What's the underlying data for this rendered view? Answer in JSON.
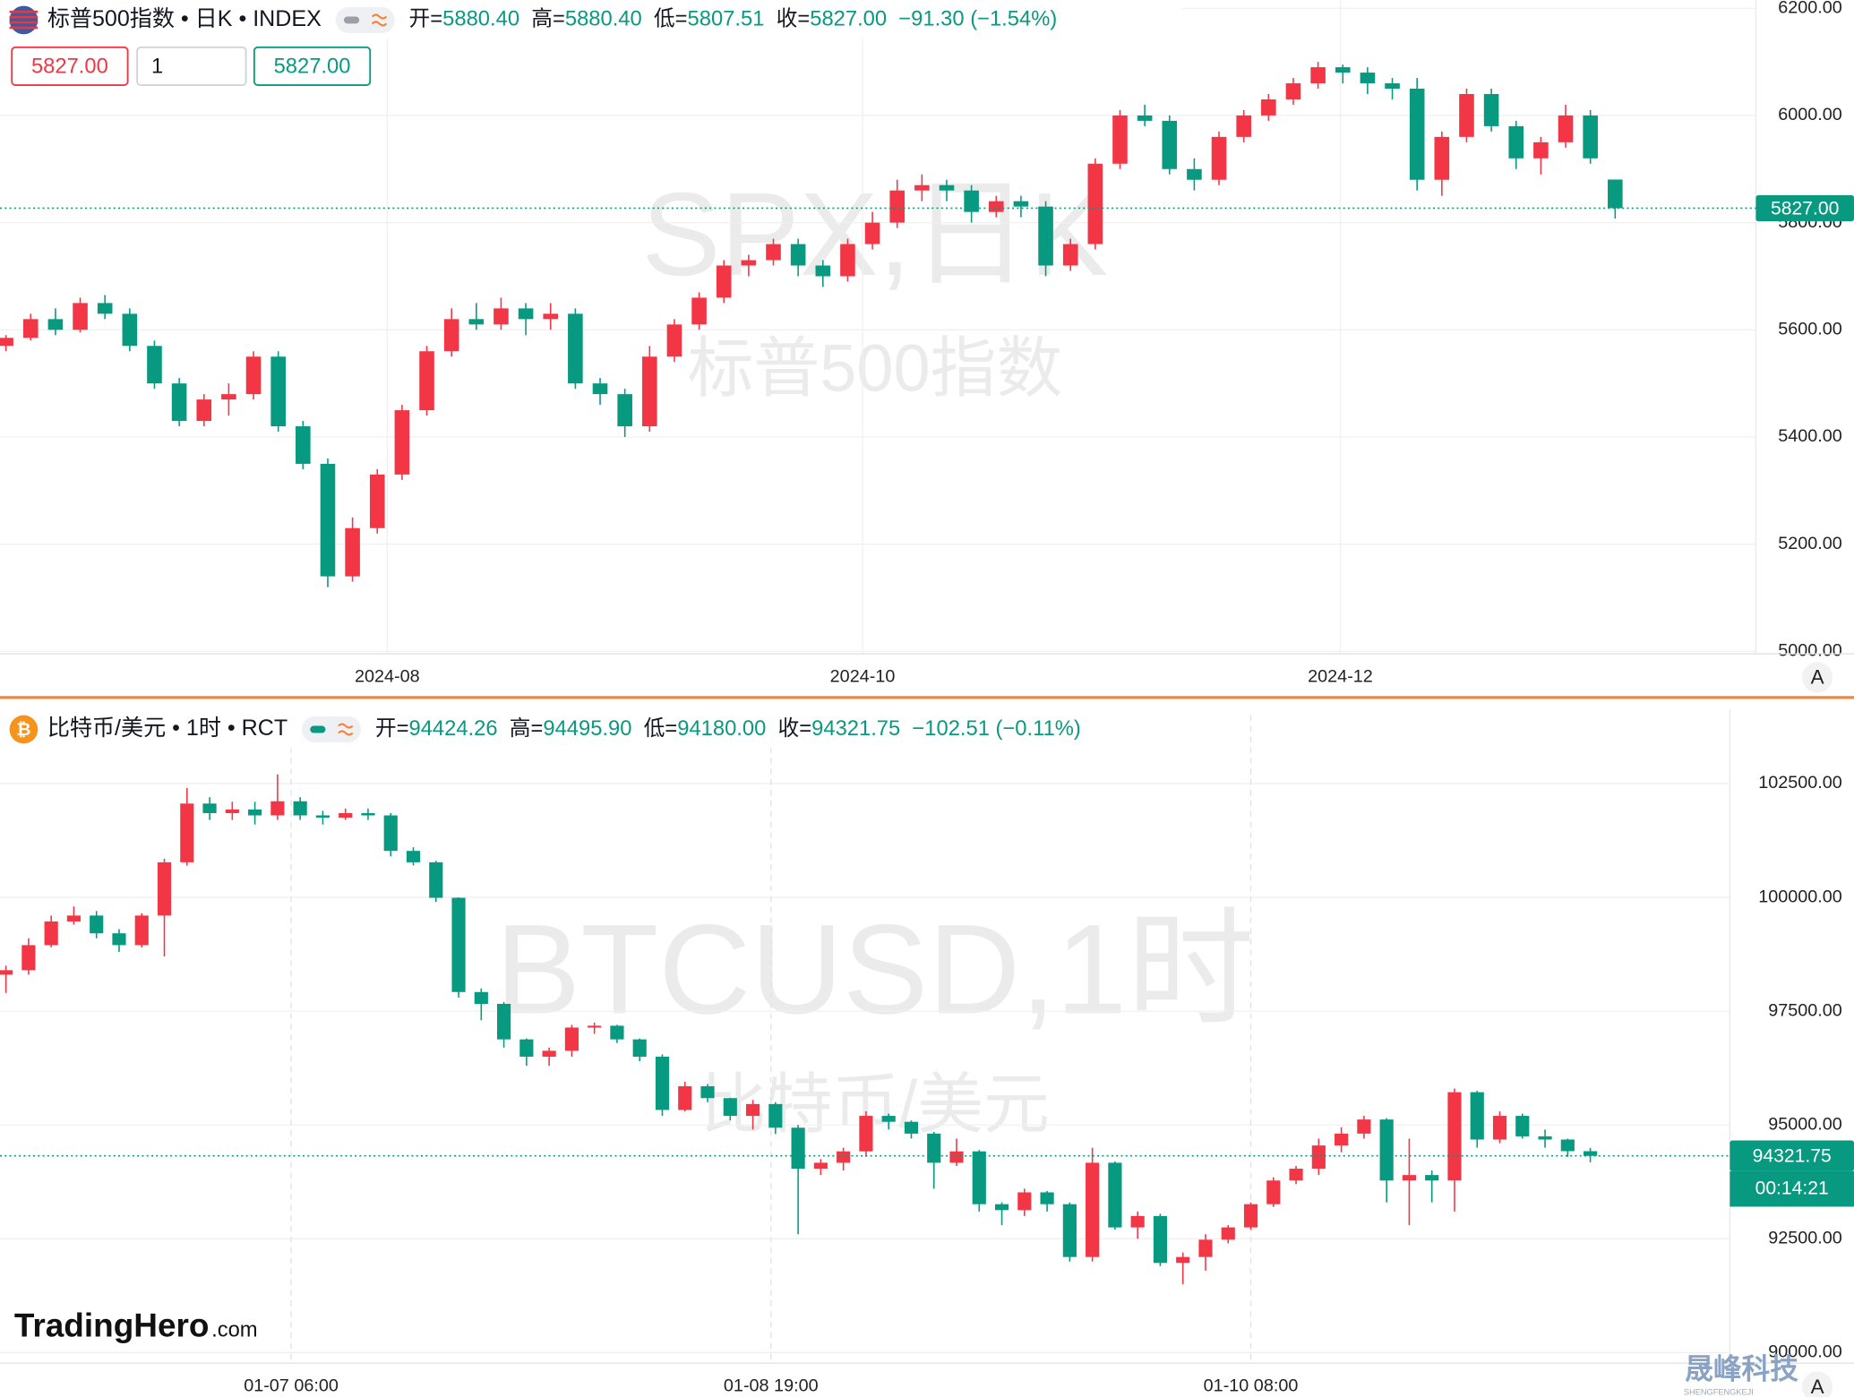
{
  "chart_data": [
    {
      "type": "candlestick",
      "symbol": "标普500指数 • 日K • INDEX",
      "watermark": [
        "SPX,日K",
        "标普500指数"
      ],
      "info": [
        {
          "label": "开=",
          "value": "5880.40"
        },
        {
          "label": "高=",
          "value": "5880.40"
        },
        {
          "label": "低=",
          "value": "5807.51"
        },
        {
          "label": "收=",
          "value": "5827.00"
        }
      ],
      "change": "−91.30 (−1.54%)",
      "order_buttons": [
        "5827.00",
        "1",
        "5827.00"
      ],
      "scale_button": "A",
      "last_price": {
        "value": 5827,
        "label": "5827.00"
      },
      "up_color": "#f23645",
      "down_color": "#089981",
      "ylim": [
        5000,
        6200
      ],
      "yticks": [
        {
          "value": 5000,
          "label": "5000.00"
        },
        {
          "value": 5200,
          "label": "5200.00"
        },
        {
          "value": 5400,
          "label": "5400.00"
        },
        {
          "value": 5600,
          "label": "5600.00"
        },
        {
          "value": 5800,
          "label": "5800.00"
        },
        {
          "value": 6000,
          "label": "6000.00"
        },
        {
          "value": 6200,
          "label": "6200.00"
        }
      ],
      "xticks": [
        {
          "value": 15.4,
          "label": "2024-08"
        },
        {
          "value": 34.6,
          "label": "2024-10"
        },
        {
          "value": 53.9,
          "label": "2024-12"
        }
      ],
      "open": [
        5570,
        5585,
        5620,
        5600,
        5650,
        5630,
        5570,
        5500,
        5430,
        5470,
        5480,
        5550,
        5420,
        5350,
        5140,
        5230,
        5330,
        5450,
        5560,
        5620,
        5610,
        5640,
        5620,
        5630,
        5500,
        5480,
        5420,
        5550,
        5610,
        5660,
        5720,
        5730,
        5760,
        5720,
        5700,
        5760,
        5800,
        5860,
        5870,
        5860,
        5820,
        5840,
        5830,
        5720,
        5760,
        5910,
        6000,
        5990,
        5900,
        5880,
        5960,
        6000,
        6030,
        6060,
        6090,
        6080,
        6060,
        6050,
        5880,
        5960,
        6040,
        5980,
        5920,
        5950,
        6000,
        5880.4
      ],
      "high": [
        5590,
        5630,
        5640,
        5660,
        5665,
        5640,
        5580,
        5510,
        5480,
        5500,
        5560,
        5560,
        5430,
        5360,
        5250,
        5340,
        5460,
        5570,
        5640,
        5650,
        5660,
        5650,
        5650,
        5640,
        5510,
        5490,
        5570,
        5620,
        5670,
        5730,
        5740,
        5770,
        5770,
        5730,
        5770,
        5820,
        5880,
        5890,
        5880,
        5870,
        5850,
        5850,
        5840,
        5770,
        5920,
        6010,
        6020,
        6000,
        5920,
        5970,
        6010,
        6040,
        6070,
        6100,
        6095,
        6090,
        6070,
        6070,
        5970,
        6050,
        6050,
        5990,
        5960,
        6020,
        6010,
        5880.4
      ],
      "low": [
        5560,
        5580,
        5590,
        5595,
        5620,
        5560,
        5490,
        5420,
        5420,
        5440,
        5470,
        5410,
        5340,
        5120,
        5130,
        5220,
        5320,
        5440,
        5550,
        5600,
        5600,
        5590,
        5600,
        5490,
        5460,
        5400,
        5410,
        5540,
        5600,
        5650,
        5700,
        5720,
        5700,
        5680,
        5690,
        5750,
        5790,
        5840,
        5840,
        5800,
        5810,
        5810,
        5700,
        5710,
        5750,
        5900,
        5980,
        5890,
        5860,
        5870,
        5950,
        5990,
        6020,
        6050,
        6060,
        6040,
        6030,
        5860,
        5850,
        5950,
        5970,
        5900,
        5890,
        5940,
        5910,
        5807.51
      ],
      "close": [
        5585,
        5620,
        5600,
        5650,
        5630,
        5570,
        5500,
        5430,
        5470,
        5480,
        5550,
        5420,
        5350,
        5140,
        5230,
        5330,
        5450,
        5560,
        5620,
        5610,
        5640,
        5620,
        5630,
        5500,
        5480,
        5420,
        5550,
        5610,
        5660,
        5720,
        5730,
        5760,
        5720,
        5700,
        5760,
        5800,
        5860,
        5870,
        5860,
        5820,
        5840,
        5830,
        5720,
        5760,
        5910,
        6000,
        5990,
        5900,
        5880,
        5960,
        6000,
        6030,
        6060,
        6090,
        6080,
        6060,
        6050,
        5880,
        5960,
        6040,
        5980,
        5920,
        5950,
        6000,
        5920,
        5827
      ]
    },
    {
      "type": "candlestick",
      "symbol": "比特币/美元 • 1时 • RCT",
      "watermark": [
        "BTCUSD,1时",
        "比特币/美元"
      ],
      "info": [
        {
          "label": "开=",
          "value": "94424.26"
        },
        {
          "label": "高=",
          "value": "94495.90"
        },
        {
          "label": "低=",
          "value": "94180.00"
        },
        {
          "label": "收=",
          "value": "94321.75"
        }
      ],
      "change": "−102.51 (−0.11%)",
      "scale_button": "A",
      "countdown": "00:14:21",
      "last_price": {
        "value": 94321.75,
        "label": "94321.75"
      },
      "up_color": "#f23645",
      "down_color": "#089981",
      "ylim": [
        89900,
        104000
      ],
      "yticks": [
        {
          "value": 90000,
          "label": "90000.00"
        },
        {
          "value": 92500,
          "label": "92500.00"
        },
        {
          "value": 95000,
          "label": "95000.00"
        },
        {
          "value": 97500,
          "label": "97500.00"
        },
        {
          "value": 100000,
          "label": "100000.00"
        },
        {
          "value": 102500,
          "label": "102500.00"
        }
      ],
      "xticks": [
        {
          "value": 12.6,
          "label": "01-07 06:00"
        },
        {
          "value": 33.8,
          "label": "01-08 19:00"
        },
        {
          "value": 55.0,
          "label": "01-10 08:00"
        }
      ],
      "open": [
        98300,
        98400,
        98950,
        99470,
        99600,
        99210,
        98950,
        99600,
        100770,
        102060,
        101850,
        101930,
        101800,
        102110,
        101800,
        101750,
        101850,
        101800,
        101020,
        100770,
        99990,
        97920,
        97660,
        96880,
        96500,
        96630,
        97140,
        97180,
        96880,
        96500,
        95330,
        95850,
        95590,
        95200,
        95460,
        94940,
        94040,
        94170,
        94420,
        95200,
        95070,
        94810,
        94170,
        94420,
        93260,
        93130,
        93520,
        93260,
        92100,
        94170,
        92750,
        93000,
        91970,
        92100,
        92480,
        92750,
        93260,
        93780,
        94040,
        94550,
        94810,
        95120,
        93780,
        93900,
        93780,
        95720,
        94680,
        95200,
        94750,
        94680,
        94424.26
      ],
      "high": [
        98500,
        99100,
        99600,
        99800,
        99700,
        99300,
        99650,
        100850,
        102400,
        102200,
        102100,
        102100,
        102700,
        102200,
        101900,
        101950,
        101950,
        101850,
        101100,
        100800,
        100000,
        98000,
        97700,
        96900,
        96700,
        97200,
        97250,
        97200,
        96900,
        96550,
        95950,
        95900,
        95600,
        95550,
        95500,
        95000,
        94250,
        94500,
        95300,
        95250,
        95100,
        94850,
        94700,
        94450,
        93300,
        93600,
        93550,
        93300,
        94500,
        94200,
        93100,
        93050,
        92200,
        92600,
        92800,
        93300,
        93850,
        94100,
        94700,
        94950,
        95200,
        95150,
        94700,
        94000,
        95800,
        95750,
        95300,
        95250,
        94900,
        94700,
        94495.9
      ],
      "low": [
        97900,
        98300,
        98900,
        99400,
        99100,
        98800,
        98900,
        98700,
        100700,
        101700,
        101700,
        101600,
        101700,
        101700,
        101600,
        101700,
        101700,
        100900,
        100700,
        99900,
        97800,
        97300,
        96700,
        96300,
        96300,
        96500,
        97000,
        96800,
        96400,
        95200,
        95300,
        95500,
        95100,
        94900,
        94800,
        92600,
        93900,
        94000,
        94300,
        94900,
        94700,
        93600,
        94100,
        93100,
        92800,
        93000,
        93100,
        92000,
        92000,
        92700,
        92500,
        91900,
        91500,
        91800,
        92400,
        92700,
        93200,
        93700,
        93900,
        94400,
        94700,
        93300,
        92800,
        93300,
        93100,
        94500,
        94600,
        94700,
        94500,
        94300,
        94180
      ],
      "close": [
        98400,
        98950,
        99470,
        99600,
        99210,
        98950,
        99600,
        100770,
        102060,
        101850,
        101930,
        101800,
        102110,
        101800,
        101750,
        101850,
        101800,
        101020,
        100770,
        99990,
        97920,
        97660,
        96880,
        96500,
        96630,
        97140,
        97180,
        96880,
        96500,
        95330,
        95850,
        95590,
        95200,
        95460,
        94940,
        94040,
        94170,
        94420,
        95200,
        95070,
        94810,
        94170,
        94420,
        93260,
        93130,
        93520,
        93260,
        92100,
        94170,
        92750,
        93000,
        91970,
        92100,
        92480,
        92750,
        93260,
        93780,
        94040,
        94550,
        94810,
        95120,
        93780,
        93900,
        93780,
        95720,
        94680,
        95200,
        94750,
        94680,
        94424.26,
        94321.75
      ]
    }
  ],
  "branding": {
    "logo": "TradingHero",
    "logo_suffix": ".com",
    "watermark": "晟峰科技",
    "watermark_sub": "SHENGFENGKEJI"
  }
}
